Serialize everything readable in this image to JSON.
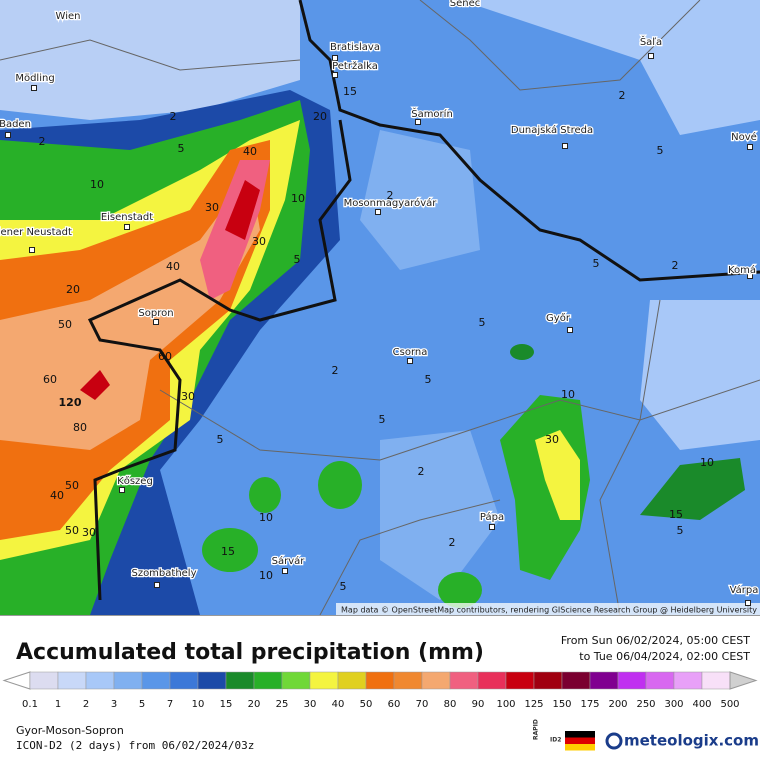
{
  "map": {
    "places": [
      "Wien",
      "Bratislava",
      "Petržalka",
      "Mödling",
      "Baden",
      "Šamorín",
      "Dunajská Streda",
      "Šaľa",
      "Nové",
      "Eisenstadt",
      "Wiener Neustadt",
      "Mosonmagyaróvár",
      "Komá",
      "Sopron",
      "Győr",
      "Csorna",
      "Kőszeg",
      "Pápa",
      "Szombathely",
      "Sárvár",
      "Várpa",
      "Senec"
    ],
    "contour_labels": [
      2,
      2,
      5,
      10,
      40,
      30,
      10,
      30,
      40,
      20,
      5,
      50,
      60,
      60,
      120,
      80,
      30,
      5,
      15,
      20,
      2,
      2,
      5,
      5,
      2,
      5,
      5,
      2,
      5,
      10,
      30,
      2,
      50,
      40,
      50,
      30,
      15,
      10,
      10,
      2,
      5,
      10,
      15,
      5
    ],
    "attribution": "Map data © OpenStreetMap contributors, rendering GIScience Research Group @ Heidelberg University"
  },
  "header": {
    "title": "Accumulated total precipitation (mm)",
    "date_from": "From Sun 06/02/2024, 05:00 CEST",
    "date_to": "to Tue 06/04/2024, 02:00 CEST"
  },
  "legend": {
    "values": [
      0.1,
      1,
      2,
      3,
      5,
      7,
      10,
      15,
      20,
      25,
      30,
      40,
      50,
      60,
      70,
      80,
      90,
      100,
      125,
      150,
      175,
      200,
      250,
      300,
      400,
      500
    ],
    "colors": [
      "#dcdcf0",
      "#c8d8f8",
      "#a8c8f8",
      "#80b0f0",
      "#5a96e8",
      "#3c78d8",
      "#1c4aa8",
      "#1a8a2a",
      "#28b028",
      "#70d838",
      "#f4f440",
      "#e0d020",
      "#f07010",
      "#f08830",
      "#f4a870",
      "#f06080",
      "#e8305a",
      "#c80010",
      "#a00010",
      "#7a0030",
      "#800090",
      "#c030f0",
      "#d868f0",
      "#e8a0f8",
      "#f8e0f8",
      "#d0d0d0"
    ]
  },
  "footer": {
    "region": "Gyor-Moson-Sopron",
    "model": "ICON-D2 (2 days) from 06/02/2024/03z",
    "rapid": "RAPID",
    "id2": "ID2",
    "brand": "meteologix.com"
  }
}
